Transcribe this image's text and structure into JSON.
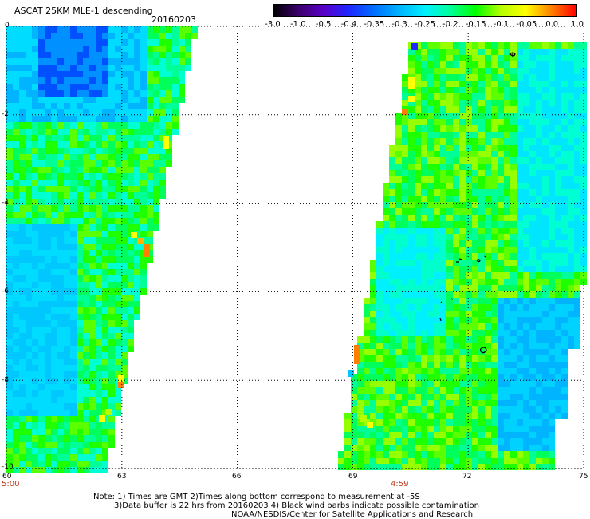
{
  "header": {
    "title": "ASCAT 25KM MLE-1 descending",
    "date": "20160203"
  },
  "colorbar": {
    "labels": [
      "-3.0",
      "-1.0",
      "-0.5",
      "-0.4",
      "-0.35",
      "-0.3",
      "-0.25",
      "-0.2",
      "-0.15",
      "-0.1",
      "-0.05",
      "0.0",
      "1.0"
    ],
    "colors": [
      "#000000",
      "#3b006b",
      "#5a00c8",
      "#1e28ff",
      "#0070ff",
      "#00b4ff",
      "#00f0ff",
      "#00ff9a",
      "#00ff00",
      "#b4ff00",
      "#ffff00",
      "#ff8000",
      "#ff0000"
    ]
  },
  "map": {
    "lat_labels": [
      "0",
      "-2",
      "-4",
      "-6",
      "-8",
      "-10"
    ],
    "lon_labels": [
      "60",
      "63",
      "66",
      "69",
      "72",
      "75"
    ],
    "lon_range": [
      60,
      75
    ],
    "lat_range": [
      -10,
      0
    ],
    "time_left": "5:00",
    "time_right": "4:59"
  },
  "notes": {
    "line1": "Note: 1) Times are GMT 2)Times along bottom correspond to measurement at -5S",
    "line2": "3)Data buffer is 22 hrs from 20160203 4) Black wind barbs indicate possible contamination",
    "line3": "NOAA/NESDIS/Center for Satellite Applications and Research"
  }
}
